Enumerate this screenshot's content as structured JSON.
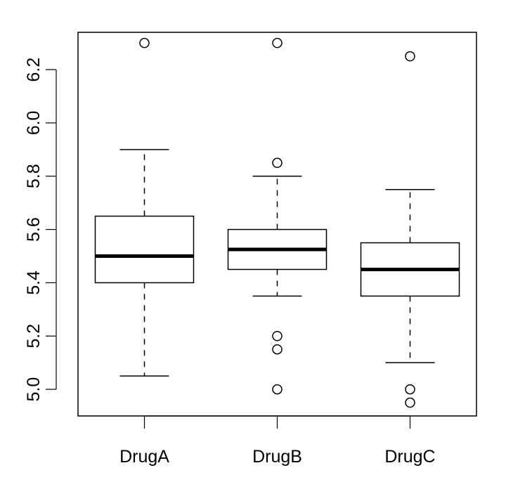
{
  "chart_data": {
    "type": "boxplot",
    "title": "",
    "xlabel": "",
    "ylabel": "",
    "ylim": [
      4.9,
      6.34
    ],
    "yticks": [
      5.0,
      5.2,
      5.4,
      5.6,
      5.8,
      6.0,
      6.2
    ],
    "ytick_labels": [
      "5.0",
      "5.2",
      "5.4",
      "5.6",
      "5.8",
      "6.0",
      "6.2"
    ],
    "grid": false,
    "categories": [
      "DrugA",
      "DrugB",
      "DrugC"
    ],
    "boxes": [
      {
        "name": "DrugA",
        "whisker_low": 5.05,
        "q1": 5.4,
        "median": 5.5,
        "q3": 5.65,
        "whisker_high": 5.9,
        "outliers": [
          6.3
        ]
      },
      {
        "name": "DrugB",
        "whisker_low": 5.35,
        "q1": 5.45,
        "median": 5.525,
        "q3": 5.6,
        "whisker_high": 5.8,
        "outliers": [
          6.3,
          5.85,
          5.2,
          5.15,
          5.0
        ]
      },
      {
        "name": "DrugC",
        "whisker_low": 5.1,
        "q1": 5.35,
        "median": 5.45,
        "q3": 5.55,
        "whisker_high": 5.75,
        "outliers": [
          6.25,
          5.0,
          4.95
        ]
      }
    ]
  }
}
